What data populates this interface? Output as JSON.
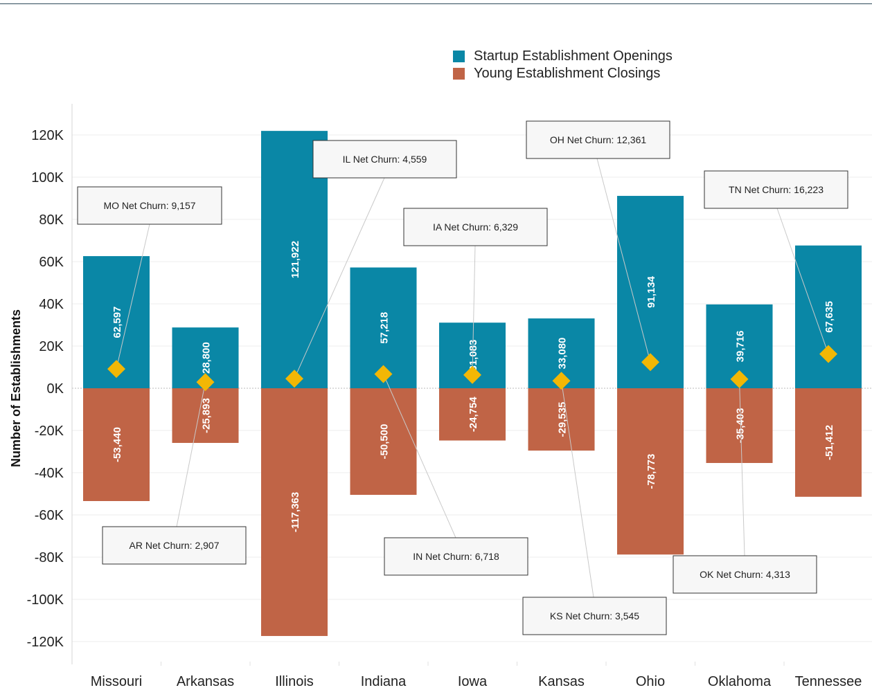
{
  "chart_data": {
    "type": "bar",
    "ylabel": "Number of Establishments",
    "ylim": [
      -120000,
      120000
    ],
    "yticks": [
      {
        "value": 120000,
        "label": "120K"
      },
      {
        "value": 100000,
        "label": "100K"
      },
      {
        "value": 80000,
        "label": "80K"
      },
      {
        "value": 60000,
        "label": "60K"
      },
      {
        "value": 40000,
        "label": "40K"
      },
      {
        "value": 20000,
        "label": "20K"
      },
      {
        "value": 0,
        "label": "0K"
      },
      {
        "value": -20000,
        "label": "-20K"
      },
      {
        "value": -40000,
        "label": "-40K"
      },
      {
        "value": -60000,
        "label": "-60K"
      },
      {
        "value": -80000,
        "label": "-80K"
      },
      {
        "value": -100000,
        "label": "-100K"
      },
      {
        "value": -120000,
        "label": "-120K"
      }
    ],
    "categories": [
      "Missouri",
      "Arkansas",
      "Illinois",
      "Indiana",
      "Iowa",
      "Kansas",
      "Ohio",
      "Oklahoma",
      "Tennessee"
    ],
    "series": [
      {
        "name": "Startup Establishment Openings",
        "color": "#0a87a6",
        "values": [
          62597,
          28800,
          121922,
          57218,
          31083,
          33080,
          91134,
          39716,
          67635
        ],
        "labels": [
          "62,597",
          "28,800",
          "121,922",
          "57,218",
          "31,083",
          "33,080",
          "91,134",
          "39,716",
          "67,635"
        ]
      },
      {
        "name": "Young Establishment Closings",
        "color": "#c06446",
        "values": [
          -53440,
          -25893,
          -117363,
          -50500,
          -24754,
          -29535,
          -78773,
          -35403,
          -51412
        ],
        "labels": [
          "-53,440",
          "-25,893",
          "-117,363",
          "-50,500",
          "-24,754",
          "-29,535",
          "-78,773",
          "-35,403",
          "-51,412"
        ]
      }
    ],
    "net_churn": {
      "color": "#f2b705",
      "values": [
        9157,
        2907,
        4559,
        6718,
        6329,
        3545,
        12361,
        4313,
        16223
      ],
      "annotations": [
        "MO Net Churn: 9,157",
        "AR Net Churn: 2,907",
        "IL Net Churn: 4,559",
        "IN Net Churn: 6,718",
        "IA Net Churn: 6,329",
        "KS Net Churn: 3,545",
        "OH Net Churn: 12,361",
        "OK Net Churn: 4,313",
        "TN Net Churn: 16,223"
      ]
    },
    "grid": true,
    "legend": "top-center"
  }
}
